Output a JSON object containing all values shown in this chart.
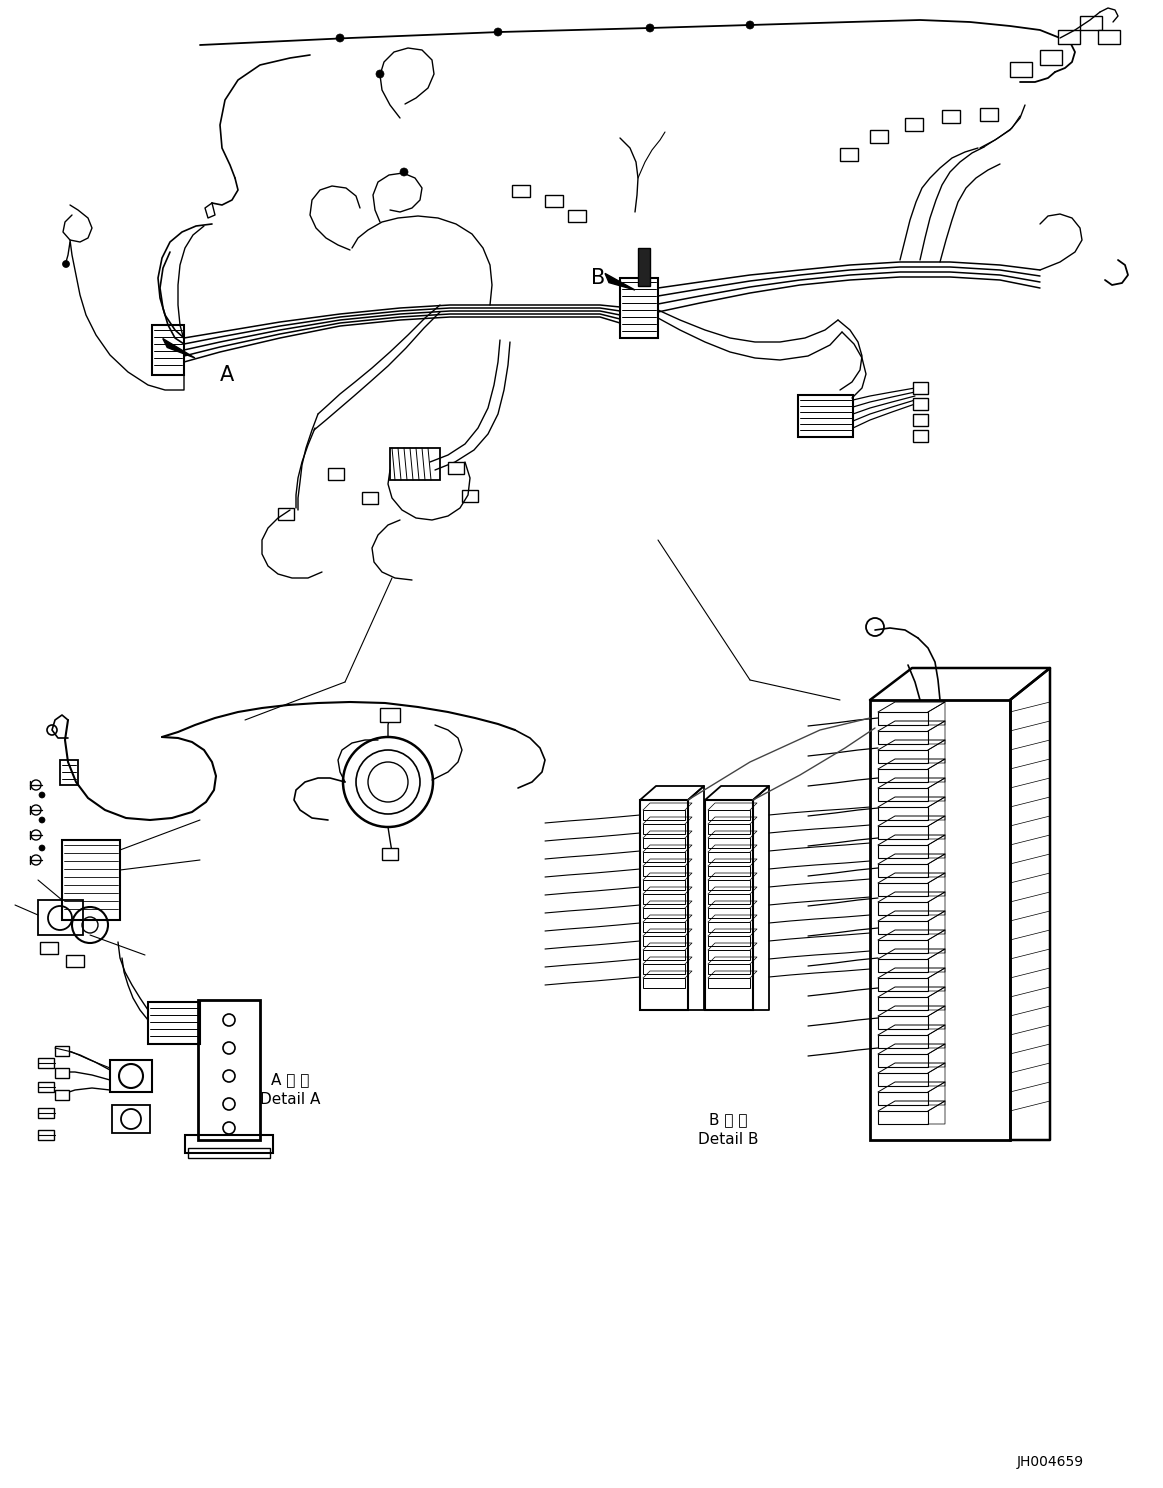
{
  "background_color": "#ffffff",
  "line_color": "#000000",
  "text_color": "#000000",
  "label_A": "A",
  "label_B": "B",
  "detail_A_jp": "A 詳細",
  "detail_A_en": "Detail A",
  "detail_B_jp": "B 詳細",
  "detail_B_en": "Detail B",
  "catalog_number": "JH004659",
  "figsize": [
    11.63,
    14.88
  ],
  "dpi": 100
}
